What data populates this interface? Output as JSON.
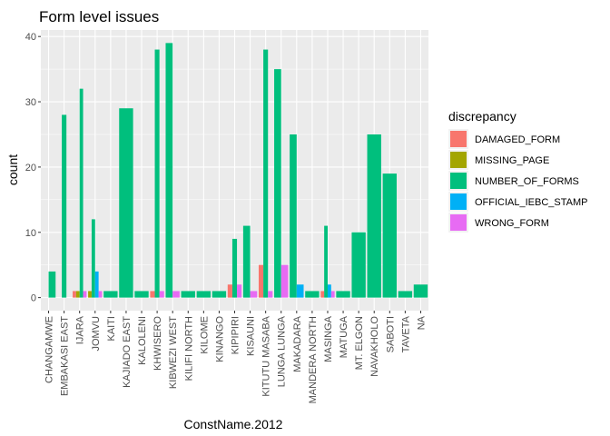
{
  "chart_data": {
    "type": "bar",
    "title": "Form level issues",
    "xlabel": "ConstName.2012",
    "ylabel": "count",
    "ylim": [
      -2,
      41
    ],
    "yticks": [
      0,
      10,
      20,
      30,
      40
    ],
    "grid": true,
    "legend_placement": "right",
    "legend": {
      "title": "discrepancy",
      "entries": [
        {
          "name": "DAMAGED_FORM",
          "color": "#F8766D"
        },
        {
          "name": "MISSING_PAGE",
          "color": "#A3A500"
        },
        {
          "name": "NUMBER_OF_FORMS",
          "color": "#00BF7D"
        },
        {
          "name": "OFFICIAL_IEBC_STAMP",
          "color": "#00B0F6"
        },
        {
          "name": "WRONG_FORM",
          "color": "#E76BF3"
        }
      ]
    },
    "categories": [
      "CHANGAMWE",
      "EMBAKASI EAST",
      "IJARA",
      "JOMVU",
      "KAITI",
      "KAJIADO EAST",
      "KALOLENI",
      "KHWISERO",
      "KIBWEZI WEST",
      "KILIFI NORTH",
      "KILOME",
      "KINANGO",
      "KIPIPIRI",
      "KISAUNI",
      "KITUTU MASABA",
      "LUNGA LUNGA",
      "MAKADARA",
      "MANDERA NORTH",
      "MASINGA",
      "MATUGA",
      "MT. ELGON",
      "NAVAKHOLO",
      "SABOTI",
      "TAVETA",
      "NA"
    ],
    "series": [
      {
        "name": "DAMAGED_FORM",
        "values": [
          0,
          0,
          1,
          0,
          0,
          0,
          0,
          1,
          0,
          0,
          0,
          0,
          2,
          0,
          5,
          0,
          0,
          0,
          1,
          0,
          0,
          0,
          0,
          0,
          0
        ]
      },
      {
        "name": "MISSING_PAGE",
        "values": [
          0,
          0,
          1,
          1,
          0,
          0,
          0,
          0,
          0,
          0,
          0,
          0,
          0,
          0,
          0,
          0,
          0,
          0,
          0,
          0,
          0,
          0,
          0,
          0,
          0
        ]
      },
      {
        "name": "NUMBER_OF_FORMS",
        "values": [
          4,
          28,
          32,
          12,
          1,
          29,
          1,
          38,
          39,
          1,
          1,
          1,
          9,
          11,
          38,
          35,
          25,
          1,
          11,
          1,
          10,
          25,
          19,
          1,
          2
        ]
      },
      {
        "name": "OFFICIAL_IEBC_STAMP",
        "values": [
          0,
          0,
          0,
          4,
          0,
          0,
          0,
          0,
          0,
          0,
          0,
          0,
          0,
          0,
          0,
          0,
          2,
          0,
          2,
          0,
          0,
          0,
          0,
          0,
          0
        ]
      },
      {
        "name": "WRONG_FORM",
        "values": [
          0,
          0,
          1,
          1,
          0,
          0,
          0,
          1,
          1,
          0,
          0,
          0,
          2,
          1,
          1,
          5,
          0,
          0,
          1,
          0,
          0,
          0,
          0,
          0,
          0
        ]
      }
    ],
    "groups": [
      [
        0,
        2
      ],
      [
        1,
        2,
        3
      ],
      [
        0,
        1,
        2,
        4
      ],
      [
        1,
        2,
        3,
        4
      ],
      [
        2
      ],
      [
        2
      ],
      [
        2
      ],
      [
        0,
        2,
        4
      ],
      [
        2,
        4
      ],
      [
        2
      ],
      [
        2
      ],
      [
        2
      ],
      [
        0,
        2,
        4
      ],
      [
        2,
        4
      ],
      [
        0,
        2,
        4
      ],
      [
        2,
        4
      ],
      [
        2,
        3
      ],
      [
        2
      ],
      [
        0,
        2,
        3,
        4
      ],
      [
        2
      ],
      [
        2
      ],
      [
        2
      ],
      [
        2
      ],
      [
        2
      ],
      [
        2
      ]
    ]
  }
}
